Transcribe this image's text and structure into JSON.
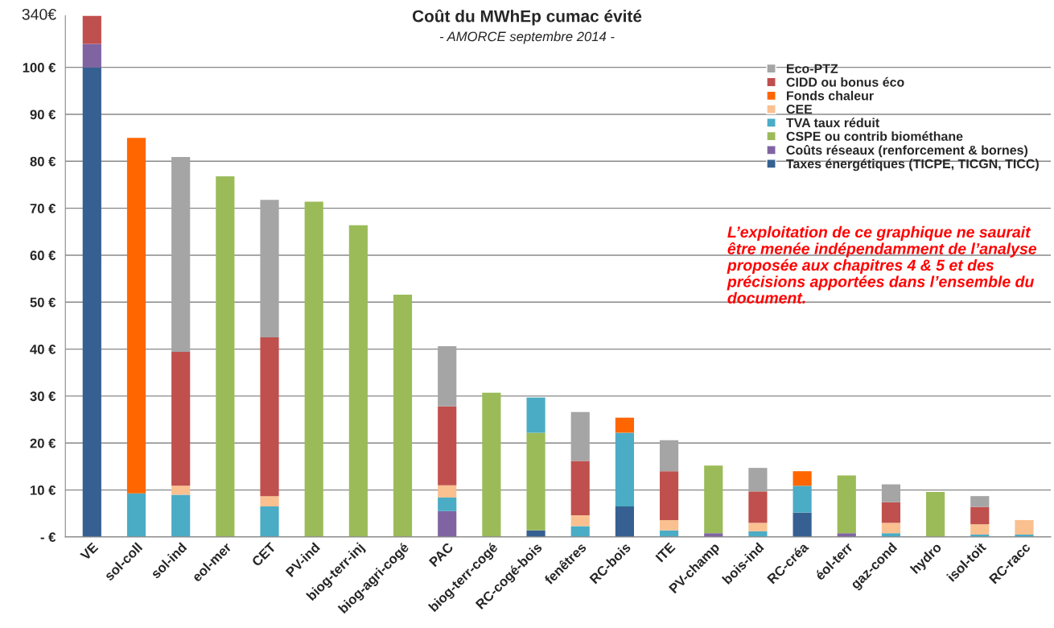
{
  "chart_data": {
    "type": "bar",
    "stacked": true,
    "title": "Coût du MWhEp cumac évité",
    "subtitle": "- AMORCE septembre 2014 -",
    "categories": [
      "VE",
      "sol-coll",
      "sol-ind",
      "eol-mer",
      "CET",
      "PV-ind",
      "biog-terr-inj",
      "biog-agri-cogé",
      "PAC",
      "biog-terr-cogé",
      "RC-cogé-bois",
      "fenêtres",
      "RC-bois",
      "ITE",
      "PV-champ",
      "bois-ind",
      "RC-créa",
      "éol-terr",
      "gaz-cond",
      "hydro",
      "isol-toit",
      "RC-racc"
    ],
    "series": [
      {
        "name": "Taxes énergétiques (TICPE, TICGN, TICC)",
        "color": "#366092",
        "values": [
          100,
          null,
          null,
          null,
          null,
          null,
          null,
          null,
          null,
          null,
          1.4,
          null,
          6.5,
          null,
          null,
          null,
          5.2,
          null,
          null,
          null,
          null,
          null
        ]
      },
      {
        "name": "Coûts réseaux (renforcement & bornes)",
        "color": "#8064a2",
        "values": [
          5,
          null,
          null,
          null,
          null,
          null,
          null,
          null,
          5.5,
          null,
          null,
          null,
          null,
          null,
          0.8,
          null,
          null,
          0.8,
          null,
          null,
          null,
          null
        ]
      },
      {
        "name": "CSPE ou contrib biométhane",
        "color": "#9bbb59",
        "values": [
          null,
          null,
          null,
          76.8,
          null,
          71.4,
          66.4,
          51.6,
          null,
          30.7,
          20.8,
          null,
          null,
          null,
          14.4,
          null,
          null,
          12.3,
          null,
          9.6,
          null,
          null
        ]
      },
      {
        "name": "TVA taux réduit",
        "color": "#4bacc6",
        "values": [
          null,
          9.3,
          9.0,
          null,
          6.5,
          null,
          null,
          null,
          2.9,
          null,
          7.5,
          2.3,
          15.7,
          1.4,
          null,
          1.2,
          5.7,
          null,
          0.8,
          null,
          0.5,
          0.5
        ]
      },
      {
        "name": "CEE",
        "color": "#fac090",
        "values": [
          null,
          null,
          1.9,
          null,
          2.2,
          null,
          null,
          null,
          2.6,
          null,
          null,
          2.3,
          null,
          2.2,
          null,
          1.8,
          null,
          null,
          2.2,
          null,
          2.2,
          3.1
        ]
      },
      {
        "name": "Fonds chaleur",
        "color": "#ff6600",
        "values": [
          null,
          75.7,
          null,
          null,
          null,
          null,
          null,
          null,
          null,
          null,
          null,
          null,
          3.2,
          null,
          null,
          null,
          3.1,
          null,
          null,
          null,
          null,
          null
        ]
      },
      {
        "name": "CIDD ou bonus éco",
        "color": "#c0504d",
        "values": [
          6,
          null,
          28.5,
          null,
          33.8,
          null,
          null,
          null,
          16.8,
          null,
          null,
          11.6,
          null,
          10.4,
          null,
          6.7,
          null,
          null,
          4.4,
          null,
          3.7,
          null
        ]
      },
      {
        "name": "Eco-PTZ",
        "color": "#a5a5a5",
        "values": [
          null,
          null,
          41.5,
          null,
          29.3,
          null,
          null,
          null,
          12.8,
          null,
          null,
          10.4,
          null,
          6.6,
          null,
          5.0,
          null,
          null,
          3.8,
          null,
          2.3,
          null
        ]
      }
    ],
    "ylim": [
      0,
      111
    ],
    "yticks": [
      {
        "value": 0,
        "label": "- €"
      },
      {
        "value": 10,
        "label": "10 €"
      },
      {
        "value": 20,
        "label": "20 €"
      },
      {
        "value": 30,
        "label": "30 €"
      },
      {
        "value": 40,
        "label": "40 €"
      },
      {
        "value": 50,
        "label": "50 €"
      },
      {
        "value": 60,
        "label": "60 €"
      },
      {
        "value": 70,
        "label": "70 €"
      },
      {
        "value": 80,
        "label": "80 €"
      },
      {
        "value": 90,
        "label": "90 €"
      },
      {
        "value": 100,
        "label": "100 €"
      }
    ],
    "grid": "y",
    "legend": "top right",
    "annotations": [
      "340€",
      "L’exploitation de ce graphique ne saurait être menée indépendamment de l’analyse proposée aux chapitres 4 & 5 et des précisions apportées dans l’ensemble du document."
    ]
  }
}
